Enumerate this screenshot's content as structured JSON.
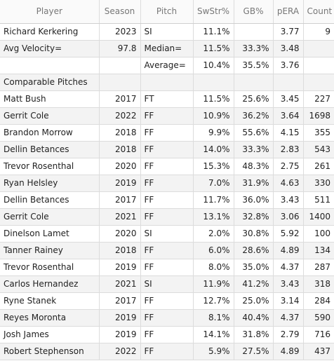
{
  "table": {
    "headers": [
      "Player",
      "Season",
      "Pitch",
      "SwStr%",
      "GB%",
      "pERA",
      "Count"
    ],
    "rows": [
      [
        "Richard Kerkering",
        "2023",
        "SI",
        "11.1%",
        "",
        "3.77",
        "9"
      ],
      [
        "Avg Velocity=",
        "97.8",
        "Median=",
        "11.5%",
        "33.3%",
        "3.48",
        ""
      ],
      [
        "",
        "",
        "Average=",
        "10.4%",
        "35.5%",
        "3.76",
        ""
      ],
      [
        "Comparable Pitches",
        "",
        "",
        "",
        "",
        "",
        ""
      ],
      [
        "Matt Bush",
        "2017",
        "FT",
        "11.5%",
        "25.6%",
        "3.45",
        "227"
      ],
      [
        "Gerrit Cole",
        "2022",
        "FF",
        "10.9%",
        "36.2%",
        "3.64",
        "1698"
      ],
      [
        "Brandon Morrow",
        "2018",
        "FF",
        "9.9%",
        "55.6%",
        "4.15",
        "355"
      ],
      [
        "Dellin Betances",
        "2018",
        "FF",
        "14.0%",
        "33.3%",
        "2.83",
        "543"
      ],
      [
        "Trevor Rosenthal",
        "2020",
        "FF",
        "15.3%",
        "48.3%",
        "2.75",
        "261"
      ],
      [
        "Ryan Helsley",
        "2019",
        "FF",
        "7.0%",
        "31.9%",
        "4.63",
        "330"
      ],
      [
        "Dellin Betances",
        "2017",
        "FF",
        "11.7%",
        "36.0%",
        "3.43",
        "511"
      ],
      [
        "Gerrit Cole",
        "2021",
        "FF",
        "13.1%",
        "32.8%",
        "3.06",
        "1400"
      ],
      [
        "Dinelson Lamet",
        "2020",
        "SI",
        "2.0%",
        "30.8%",
        "5.92",
        "100"
      ],
      [
        "Tanner Rainey",
        "2018",
        "FF",
        "6.0%",
        "28.6%",
        "4.89",
        "134"
      ],
      [
        "Trevor Rosenthal",
        "2019",
        "FF",
        "8.0%",
        "35.0%",
        "4.37",
        "287"
      ],
      [
        "Carlos Hernandez",
        "2021",
        "SI",
        "11.9%",
        "41.2%",
        "3.43",
        "318"
      ],
      [
        "Ryne Stanek",
        "2017",
        "FF",
        "12.7%",
        "25.0%",
        "3.14",
        "284"
      ],
      [
        "Reyes Moronta",
        "2019",
        "FF",
        "8.1%",
        "40.4%",
        "4.37",
        "590"
      ],
      [
        "Josh James",
        "2019",
        "FF",
        "14.1%",
        "31.8%",
        "2.79",
        "716"
      ],
      [
        "Robert Stephenson",
        "2022",
        "FF",
        "5.9%",
        "27.5%",
        "4.89",
        "437"
      ]
    ]
  }
}
